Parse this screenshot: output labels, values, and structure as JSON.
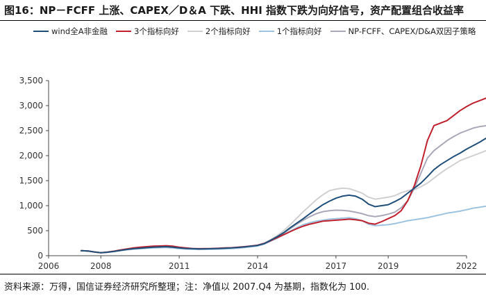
{
  "title": "图16：NP－FCFF 上涨、CAPEX／D＆A 下跌、HHI 指数下跌为向好信号，资产配置组合收益率",
  "footer": "资料来源：万得，国信证券经济研究所整理；注：净值以 2007.Q4 为基期，指数化为 100.",
  "chart_data": {
    "type": "line",
    "title": "图16：NP－FCFF 上涨、CAPEX／D＆A 下跌、HHI 指数下跌为向好信号，资产配置组合收益率",
    "xlabel": "",
    "ylabel": "",
    "xlim": [
      2006,
      2022
    ],
    "ylim": [
      0,
      3500
    ],
    "xticks": [
      2006,
      2008,
      2011,
      2014,
      2017,
      2019,
      2022
    ],
    "xtick_labels": [
      "2006",
      "2008",
      "2011",
      "2014",
      "2017",
      "2019",
      "2022"
    ],
    "yticks": [
      0,
      500,
      1000,
      1500,
      2000,
      2500,
      3000,
      3500
    ],
    "ytick_labels": [
      "0",
      "500",
      "1,000",
      "1,500",
      "2,000",
      "2,500",
      "3,000",
      "3,500"
    ],
    "x": [
      2007.25,
      2007.5,
      2007.75,
      2008.0,
      2008.25,
      2008.5,
      2008.75,
      2009.0,
      2009.25,
      2009.5,
      2009.75,
      2010.0,
      2010.25,
      2010.5,
      2010.75,
      2011.0,
      2011.25,
      2011.5,
      2011.75,
      2012.0,
      2012.25,
      2012.5,
      2012.75,
      2013.0,
      2013.25,
      2013.5,
      2013.75,
      2014.0,
      2014.25,
      2014.5,
      2014.75,
      2015.0,
      2015.25,
      2015.5,
      2015.75,
      2016.0,
      2016.25,
      2016.5,
      2016.75,
      2017.0,
      2017.25,
      2017.5,
      2017.75,
      2018.0,
      2018.25,
      2018.5,
      2018.75,
      2019.0,
      2019.25,
      2019.5,
      2019.75,
      2020.0,
      2020.25,
      2020.5,
      2020.75,
      2021.0,
      2021.25,
      2021.5,
      2021.75,
      2022.0,
      2022.25,
      2022.5,
      2022.75
    ],
    "series": [
      {
        "name": "wind全A非金融",
        "color": "#1f4e79",
        "values": [
          100,
          95,
          75,
          60,
          70,
          85,
          105,
          125,
          140,
          150,
          160,
          170,
          175,
          180,
          170,
          155,
          145,
          140,
          135,
          138,
          140,
          145,
          150,
          155,
          165,
          175,
          190,
          205,
          240,
          310,
          380,
          460,
          560,
          650,
          740,
          840,
          930,
          1020,
          1090,
          1150,
          1190,
          1210,
          1190,
          1130,
          1030,
          980,
          1000,
          1020,
          1080,
          1150,
          1250,
          1350,
          1450,
          1580,
          1720,
          1820,
          1900,
          1980,
          2050,
          2130,
          2200,
          2270,
          2350
        ]
      },
      {
        "name": "3个指标向好",
        "color": "#c0202e",
        "values": [
          100,
          95,
          75,
          60,
          72,
          90,
          115,
          135,
          155,
          170,
          180,
          190,
          195,
          200,
          190,
          170,
          155,
          145,
          140,
          143,
          145,
          150,
          155,
          160,
          170,
          180,
          195,
          210,
          245,
          300,
          360,
          420,
          480,
          540,
          590,
          630,
          660,
          690,
          700,
          710,
          720,
          730,
          720,
          700,
          650,
          630,
          680,
          740,
          800,
          900,
          1100,
          1400,
          1800,
          2300,
          2600,
          2650,
          2700,
          2800,
          2900,
          2980,
          3050,
          3100,
          3150
        ]
      },
      {
        "name": "2个指标向好",
        "color": "#d0d0d0",
        "values": [
          100,
          95,
          75,
          60,
          70,
          85,
          105,
          125,
          140,
          150,
          160,
          170,
          175,
          180,
          170,
          155,
          145,
          140,
          135,
          138,
          140,
          145,
          150,
          155,
          165,
          175,
          190,
          210,
          250,
          320,
          400,
          500,
          620,
          750,
          880,
          1000,
          1120,
          1220,
          1300,
          1330,
          1350,
          1340,
          1300,
          1250,
          1170,
          1130,
          1150,
          1170,
          1200,
          1260,
          1300,
          1320,
          1380,
          1450,
          1550,
          1650,
          1740,
          1820,
          1900,
          1950,
          2000,
          2050,
          2100
        ]
      },
      {
        "name": "1个指标向好",
        "color": "#9ec3e0",
        "values": [
          100,
          95,
          75,
          60,
          68,
          82,
          100,
          118,
          130,
          140,
          148,
          155,
          160,
          163,
          155,
          142,
          133,
          128,
          124,
          126,
          128,
          132,
          137,
          142,
          152,
          163,
          178,
          195,
          230,
          290,
          350,
          420,
          490,
          560,
          620,
          660,
          690,
          710,
          730,
          740,
          750,
          760,
          740,
          700,
          630,
          600,
          610,
          620,
          640,
          670,
          700,
          720,
          740,
          760,
          790,
          820,
          850,
          870,
          890,
          920,
          950,
          970,
          990
        ]
      },
      {
        "name": "NP-FCFF、CAPEX/D&A双因子策略",
        "color": "#a8a8b8",
        "values": [
          100,
          95,
          75,
          60,
          70,
          85,
          105,
          125,
          140,
          150,
          160,
          170,
          175,
          180,
          170,
          155,
          145,
          140,
          135,
          138,
          140,
          145,
          150,
          155,
          165,
          175,
          190,
          205,
          240,
          300,
          370,
          450,
          540,
          630,
          710,
          780,
          840,
          880,
          900,
          910,
          905,
          895,
          870,
          840,
          800,
          780,
          800,
          830,
          870,
          960,
          1100,
          1350,
          1650,
          1950,
          2100,
          2200,
          2300,
          2380,
          2450,
          2500,
          2550,
          2580,
          2600
        ]
      }
    ]
  }
}
